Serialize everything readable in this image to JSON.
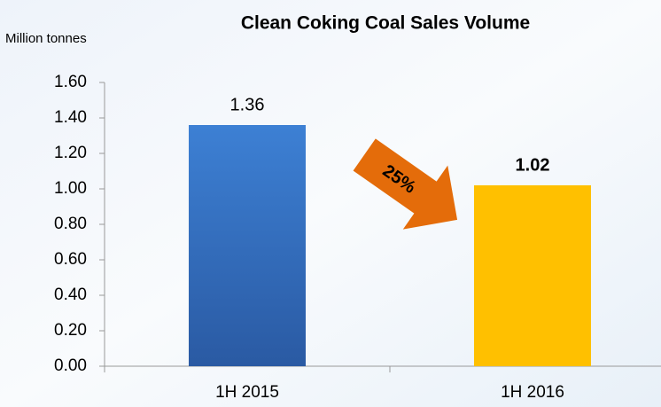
{
  "chart_data": {
    "type": "bar",
    "title": "Clean Coking Coal Sales Volume",
    "y_label": "Million tonnes",
    "categories": [
      "1H 2015",
      "1H 2016"
    ],
    "values": [
      1.36,
      1.02
    ],
    "colors": [
      "#3a7bd0",
      "#ffc000"
    ],
    "value_label_bold": [
      false,
      true
    ],
    "ylim": [
      0,
      1.6
    ],
    "yticks": [
      {
        "value": 0,
        "label": "0.00"
      },
      {
        "value": 0.2,
        "label": "0.20"
      },
      {
        "value": 0.4,
        "label": "0.40"
      },
      {
        "value": 0.6,
        "label": "0.60"
      },
      {
        "value": 0.8,
        "label": "0.80"
      },
      {
        "value": 1.0,
        "label": "1.00"
      },
      {
        "value": 1.2,
        "label": "1.20"
      },
      {
        "value": 1.4,
        "label": "1.40"
      },
      {
        "value": 1.6,
        "label": "1.60"
      }
    ],
    "annotation": "25%"
  }
}
